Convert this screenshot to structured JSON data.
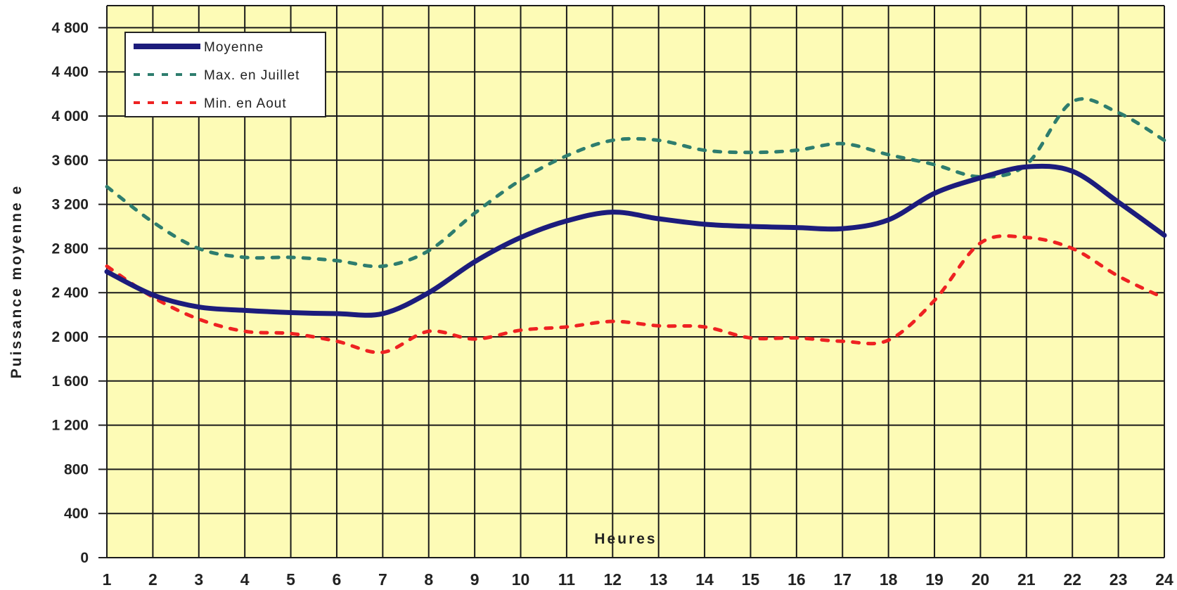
{
  "chart_data": {
    "type": "line",
    "xlabel": "Heures",
    "ylabel": "Puissance moyenne e",
    "x": [
      1,
      2,
      3,
      4,
      5,
      6,
      7,
      8,
      9,
      10,
      11,
      12,
      13,
      14,
      15,
      16,
      17,
      18,
      19,
      20,
      21,
      22,
      23,
      24
    ],
    "x_tick_labels": [
      "1",
      "2",
      "3",
      "4",
      "5",
      "6",
      "7",
      "8",
      "9",
      "10",
      "11",
      "12",
      "13",
      "14",
      "15",
      "16",
      "17",
      "18",
      "19",
      "20",
      "21",
      "22",
      "23",
      "24"
    ],
    "ylim": [
      0,
      4800
    ],
    "y_ticks": [
      0,
      400,
      800,
      1200,
      1600,
      2000,
      2400,
      2800,
      3200,
      3600,
      4000,
      4400,
      4800
    ],
    "y_tick_labels": [
      "0",
      "400",
      "800",
      "1 200",
      "1 600",
      "2 000",
      "2 400",
      "2 800",
      "3 200",
      "3 600",
      "4 000",
      "4 400",
      "4 800"
    ],
    "grid": true,
    "legend_position": "top-left",
    "background_color": "#fdfbb6",
    "grid_color": "#1a1a1a",
    "series": [
      {
        "name": "Moyenne",
        "color": "#1c1c7c",
        "style": "solid",
        "values": [
          2590,
          2380,
          2270,
          2240,
          2220,
          2210,
          2210,
          2400,
          2680,
          2900,
          3050,
          3130,
          3070,
          3020,
          3000,
          2990,
          2980,
          3060,
          3300,
          3440,
          3540,
          3500,
          3220,
          2920
        ]
      },
      {
        "name": "Max. en Juillet",
        "color": "#2e7d6e",
        "style": "dashed",
        "values": [
          3360,
          3040,
          2800,
          2720,
          2720,
          2690,
          2640,
          2780,
          3120,
          3420,
          3640,
          3780,
          3780,
          3690,
          3670,
          3690,
          3750,
          3650,
          3560,
          3450,
          3560,
          4130,
          4030,
          3780
        ]
      },
      {
        "name": "Min. en Aout",
        "color": "#ee2222",
        "style": "dashed",
        "values": [
          2640,
          2360,
          2160,
          2050,
          2030,
          1960,
          1860,
          2050,
          1980,
          2060,
          2090,
          2140,
          2100,
          2090,
          1990,
          1990,
          1960,
          1970,
          2330,
          2850,
          2900,
          2800,
          2550,
          2350
        ]
      }
    ]
  }
}
